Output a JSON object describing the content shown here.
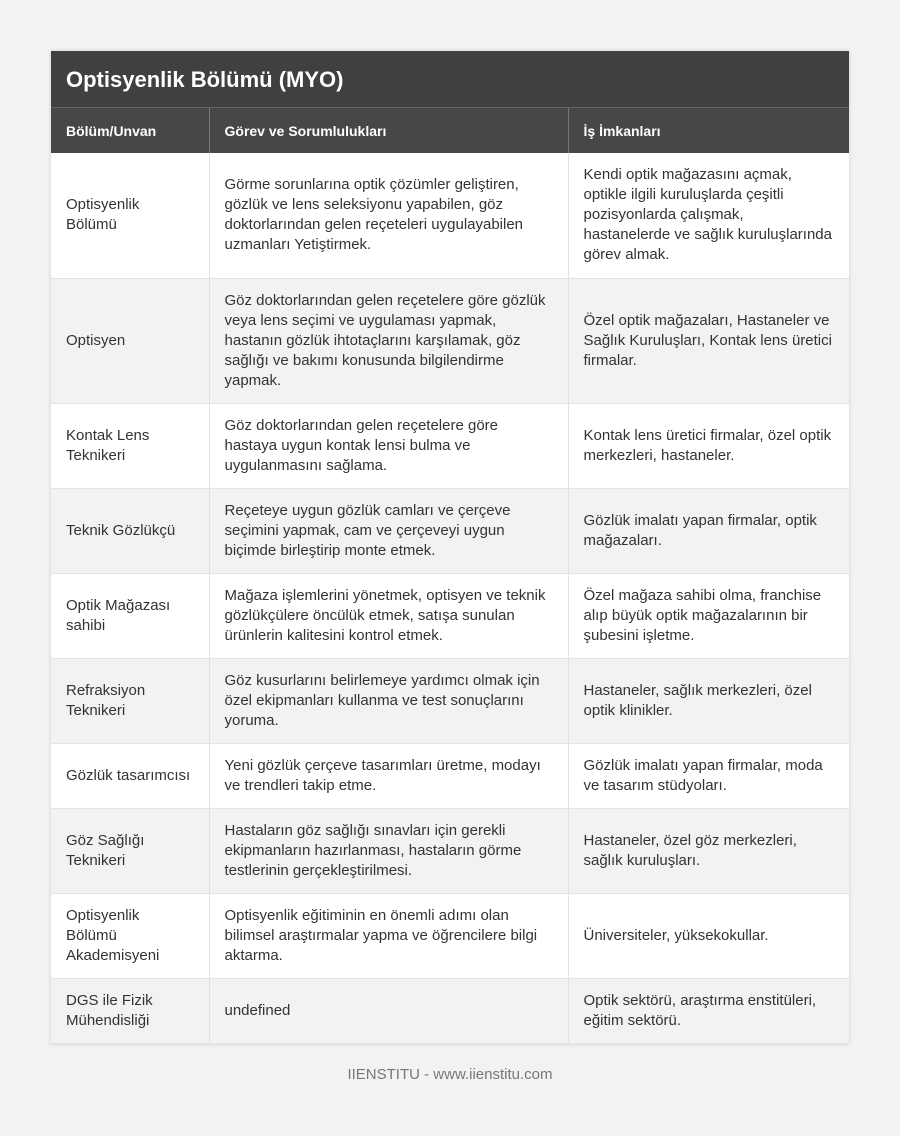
{
  "title": "Optisyenlik Bölümü (MYO)",
  "headers": [
    "Bölüm/Unvan",
    "Görev ve Sorumlulukları",
    "İş İmkanları"
  ],
  "rows": [
    [
      "Optisyenlik Bölümü",
      "Görme sorunlarına optik çözümler geliştiren, gözlük ve lens seleksiyonu yapabilen, göz doktorlarından gelen reçeteleri uygulayabilen uzmanları Yetiştirmek.",
      "Kendi optik mağazasını açmak, optikle ilgili kuruluşlarda çeşitli pozisyonlarda çalışmak, hastanelerde ve sağlık kuruluşlarında görev almak."
    ],
    [
      "Optisyen",
      "Göz doktorlarından gelen reçetelere göre gözlük veya lens seçimi ve uygulaması yapmak, hastanın gözlük ihtotaçlarını karşılamak, göz sağlığı ve bakımı konusunda bilgilendirme yapmak.",
      "Özel optik mağazaları, Hastaneler ve Sağlık Kuruluşları, Kontak lens üretici firmalar."
    ],
    [
      "Kontak Lens Teknikeri",
      "Göz doktorlarından gelen reçetelere göre hastaya uygun kontak lensi bulma ve uygulanmasını sağlama.",
      "Kontak lens üretici firmalar, özel optik merkezleri, hastaneler."
    ],
    [
      "Teknik Gözlükçü",
      "Reçeteye uygun gözlük camları ve çerçeve seçimini yapmak, cam ve çerçeveyi uygun biçimde birleştirip monte etmek.",
      "Gözlük imalatı yapan firmalar, optik mağazaları."
    ],
    [
      "Optik Mağazası sahibi",
      "Mağaza işlemlerini yönetmek, optisyen ve teknik gözlükçülere öncülük etmek, satışa sunulan ürünlerin kalitesini kontrol etmek.",
      "Özel mağaza sahibi olma, franchise alıp büyük optik mağazalarının bir şubesini işletme."
    ],
    [
      "Refraksiyon Teknikeri",
      "Göz kusurlarını belirlemeye yardımcı olmak için özel ekipmanları kullanma ve test sonuçlarını yoruma.",
      "Hastaneler, sağlık merkezleri, özel optik klinikler."
    ],
    [
      "Gözlük tasarımcısı",
      "Yeni gözlük çerçeve tasarımları üretme, modayı ve trendleri takip etme.",
      "Gözlük imalatı yapan firmalar, moda ve tasarım stüdyoları."
    ],
    [
      "Göz Sağlığı Teknikeri",
      "Hastaların göz sağlığı sınavları için gerekli ekipmanların hazırlanması, hastaların görme testlerinin gerçekleştirilmesi.",
      "Hastaneler, özel göz merkezleri, sağlık kuruluşları."
    ],
    [
      "Optisyenlik Bölümü Akademisyeni",
      "Optisyenlik eğitiminin en önemli adımı olan bilimsel araştırmalar yapma ve öğrencilere bilgi aktarma.",
      "Üniversiteler, yüksekokullar."
    ],
    [
      "DGS ile Fizik Mühendisliği",
      "undefined",
      "Optik sektörü, araştırma enstitüleri, eğitim sektörü."
    ]
  ],
  "footer": "IIENSTITU - www.iienstitu.com"
}
